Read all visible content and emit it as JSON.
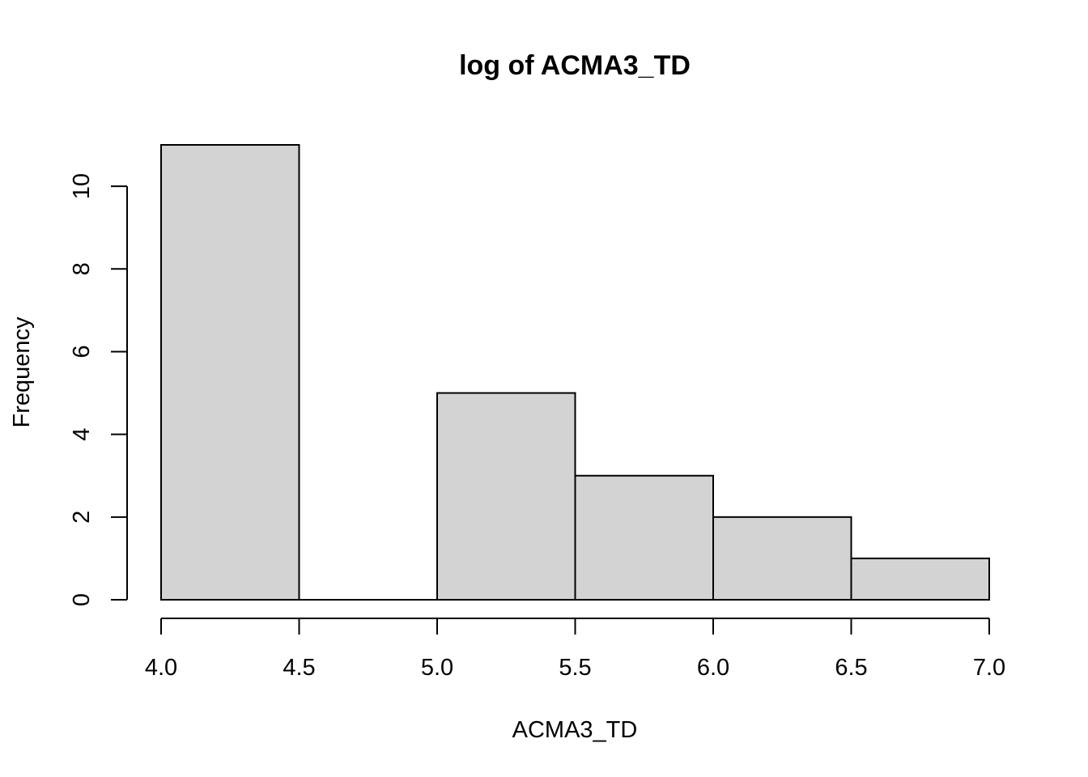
{
  "chart_data": {
    "type": "histogram",
    "title": "log of ACMA3_TD",
    "xlabel": "ACMA3_TD",
    "ylabel": "Frequency",
    "bins": [
      {
        "start": 4.0,
        "end": 4.5,
        "count": 11
      },
      {
        "start": 4.5,
        "end": 5.0,
        "count": 0
      },
      {
        "start": 5.0,
        "end": 5.5,
        "count": 5
      },
      {
        "start": 5.5,
        "end": 6.0,
        "count": 3
      },
      {
        "start": 6.0,
        "end": 6.5,
        "count": 2
      },
      {
        "start": 6.5,
        "end": 7.0,
        "count": 1
      }
    ],
    "xlim": [
      4.0,
      7.0
    ],
    "ylim": [
      0,
      11
    ],
    "x_ticks": [
      "4.0",
      "4.5",
      "5.0",
      "5.5",
      "6.0",
      "6.5",
      "7.0"
    ],
    "y_ticks": [
      "0",
      "2",
      "4",
      "6",
      "8",
      "10"
    ],
    "bar_color": "#d3d3d3",
    "grid": false,
    "legend": false
  }
}
